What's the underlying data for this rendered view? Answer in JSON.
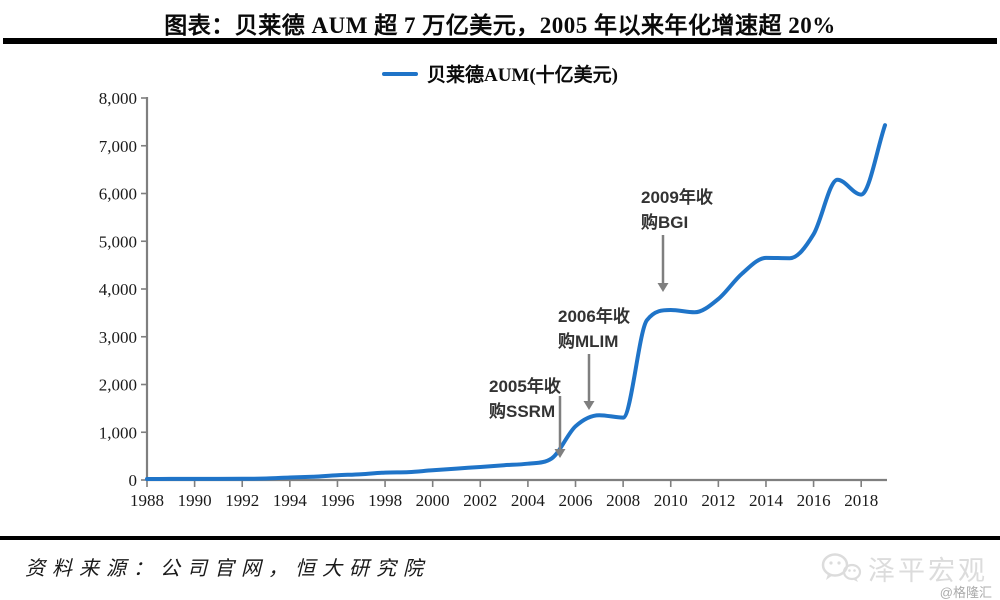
{
  "header": {
    "title": "图表：贝莱德 AUM 超 7 万亿美元，2005 年以来年化增速超 20%"
  },
  "legend": {
    "label": "贝莱德AUM(十亿美元)",
    "line_color": "#1F74C8"
  },
  "chart_data": {
    "type": "line",
    "title": "贝莱德AUM(十亿美元)",
    "xlabel": "",
    "ylabel": "",
    "xlim": [
      1988,
      2019
    ],
    "ylim": [
      0,
      8000
    ],
    "grid": false,
    "legend_position": "top-center",
    "line_color": "#1F74C8",
    "axis_color": "#7f7f7f",
    "x": [
      1988,
      1989,
      1990,
      1991,
      1992,
      1993,
      1994,
      1995,
      1996,
      1997,
      1998,
      1999,
      2000,
      2001,
      2002,
      2003,
      2004,
      2005,
      2006,
      2007,
      2008,
      2009,
      2010,
      2011,
      2012,
      2013,
      2014,
      2015,
      2016,
      2017,
      2018,
      2019
    ],
    "values": [
      20,
      22,
      23,
      24,
      25,
      31,
      53,
      70,
      101,
      121,
      156,
      165,
      204,
      239,
      273,
      309,
      342,
      452,
      1125,
      1357,
      1307,
      3346,
      3561,
      3513,
      3792,
      4325,
      4652,
      4645,
      5148,
      6288,
      5976,
      7430
    ],
    "x_ticks": [
      {
        "value": 1988,
        "label": "1988"
      },
      {
        "value": 1990,
        "label": "1990"
      },
      {
        "value": 1992,
        "label": "1992"
      },
      {
        "value": 1994,
        "label": "1994"
      },
      {
        "value": 1996,
        "label": "1996"
      },
      {
        "value": 1998,
        "label": "1998"
      },
      {
        "value": 2000,
        "label": "2000"
      },
      {
        "value": 2002,
        "label": "2002"
      },
      {
        "value": 2004,
        "label": "2004"
      },
      {
        "value": 2006,
        "label": "2006"
      },
      {
        "value": 2008,
        "label": "2008"
      },
      {
        "value": 2010,
        "label": "2010"
      },
      {
        "value": 2012,
        "label": "2012"
      },
      {
        "value": 2014,
        "label": "2014"
      },
      {
        "value": 2016,
        "label": "2016"
      },
      {
        "value": 2018,
        "label": "2018"
      }
    ],
    "y_ticks": [
      {
        "value": 0,
        "label": "0"
      },
      {
        "value": 1000,
        "label": "1,000"
      },
      {
        "value": 2000,
        "label": "2,000"
      },
      {
        "value": 3000,
        "label": "3,000"
      },
      {
        "value": 4000,
        "label": "4,000"
      },
      {
        "value": 5000,
        "label": "5,000"
      },
      {
        "value": 6000,
        "label": "6,000"
      },
      {
        "value": 7000,
        "label": "7,000"
      },
      {
        "value": 8000,
        "label": "8,000"
      }
    ],
    "annotations": [
      {
        "text": "2005年收购SSRM",
        "lines": [
          "2005年收",
          "购SSRM"
        ],
        "x": 489,
        "y": 392,
        "arrow": {
          "x": 560,
          "y1": 396,
          "y2": 450,
          "tip": 458
        }
      },
      {
        "text": "2006年收购MLIM",
        "lines": [
          "2006年收",
          "购MLIM"
        ],
        "x": 558,
        "y": 322,
        "arrow": {
          "x": 589,
          "y1": 354,
          "y2": 402,
          "tip": 410
        }
      },
      {
        "text": "2009年收购BGI",
        "lines": [
          "2009年收",
          "购BGI"
        ],
        "x": 641,
        "y": 203,
        "arrow": {
          "x": 663,
          "y1": 235,
          "y2": 284,
          "tip": 292
        }
      }
    ],
    "arrow_color": "#7f7f7f"
  },
  "footer": {
    "source": "资料来源：公司官网，恒大研究院"
  },
  "watermark": {
    "brand": "泽平宏观",
    "handle": "@格隆汇"
  }
}
